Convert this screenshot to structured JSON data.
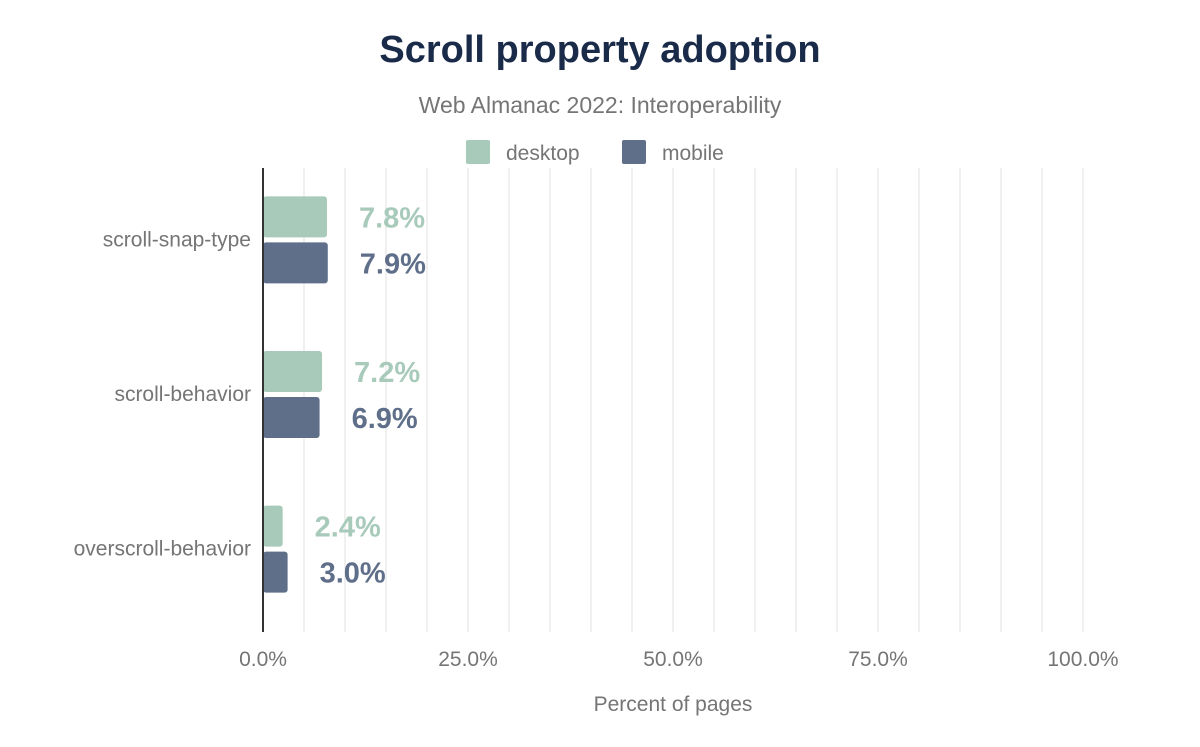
{
  "chart_data": {
    "type": "bar",
    "orientation": "horizontal",
    "title": "Scroll property adoption",
    "subtitle": "Web Almanac 2022: Interoperability",
    "xlabel": "Percent of pages",
    "ylabel": "",
    "xlim": [
      0,
      100
    ],
    "xticks": [
      "0.0%",
      "25.0%",
      "50.0%",
      "75.0%",
      "100.0%"
    ],
    "grid": true,
    "legend_position": "top",
    "categories": [
      "scroll-snap-type",
      "scroll-behavior",
      "overscroll-behavior"
    ],
    "series": [
      {
        "name": "desktop",
        "color": "#a8cabb",
        "values": [
          7.8,
          7.2,
          2.4
        ],
        "labels": [
          "7.8%",
          "7.2%",
          "2.4%"
        ]
      },
      {
        "name": "mobile",
        "color": "#5f6f8a",
        "values": [
          7.9,
          6.9,
          3.0
        ],
        "labels": [
          "7.9%",
          "6.9%",
          "3.0%"
        ]
      }
    ]
  }
}
